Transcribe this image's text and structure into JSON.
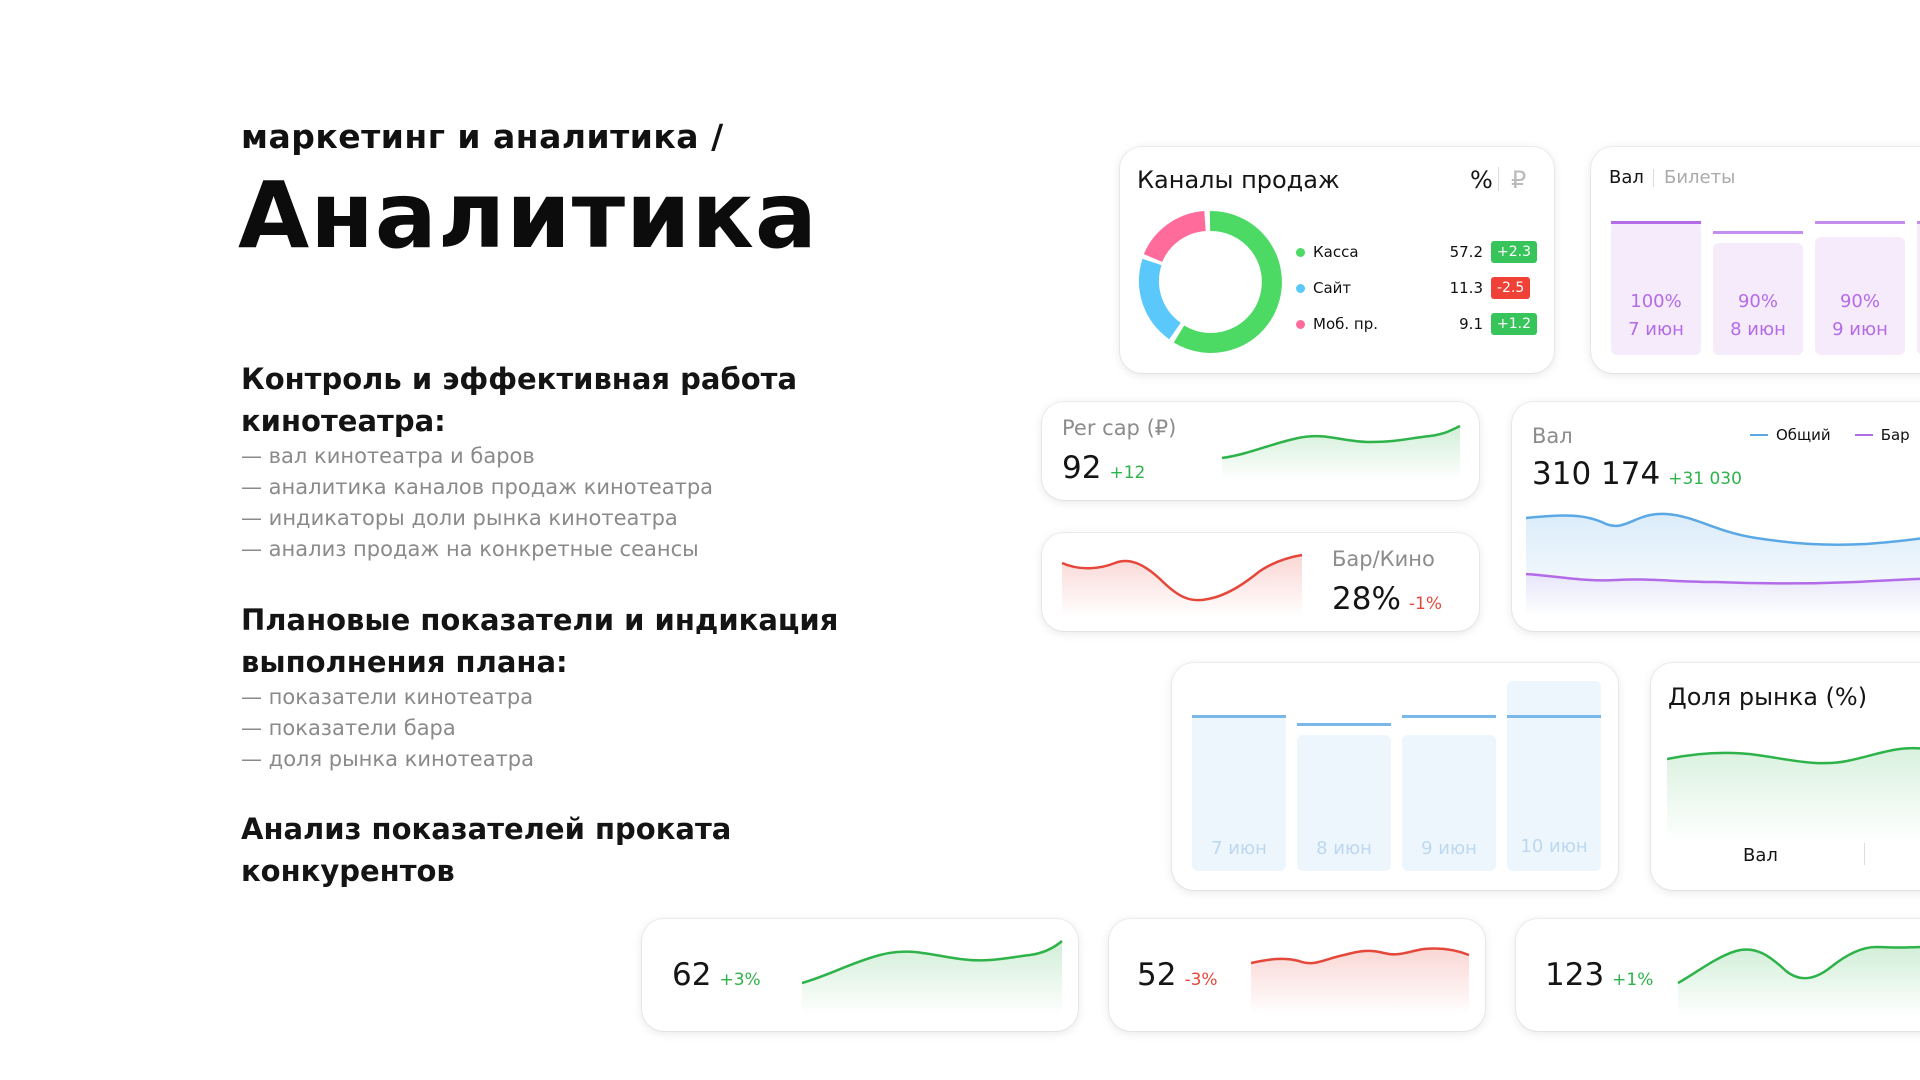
{
  "header": {
    "kicker": "маркетинг и аналитика /",
    "title": "Аналитика"
  },
  "sections": [
    {
      "heading_line1": "Контроль и эффективная работа",
      "heading_line2": "кинотеатра:",
      "bullets": [
        "— вал кинотеатра и баров",
        "— аналитика каналов продаж кинотеатра",
        "— индикаторы доли рынка кинотеатра",
        "— анализ продаж на конкретные сеансы"
      ]
    },
    {
      "heading_line1": "Плановые показатели и индикация",
      "heading_line2": "выполнения плана:",
      "bullets": [
        "— показатели кинотеатра",
        "— показатели бара",
        "— доля рынка кинотеатра"
      ]
    },
    {
      "heading_line1": "Анализ показателей проката конкурентов"
    }
  ],
  "sales_channels": {
    "title": "Каналы продаж",
    "toggle_percent": "%",
    "toggle_rub": "₽",
    "rows": [
      {
        "label": "Касса",
        "value": "57.2",
        "delta": "+2.3",
        "color": "#4cd964"
      },
      {
        "label": "Сайт",
        "value": "11.3",
        "delta": "-2.5",
        "color": "#5ac8fa"
      },
      {
        "label": "Моб. пр.",
        "value": "9.1",
        "delta": "+1.2",
        "color": "#ff6b9a"
      }
    ]
  },
  "val_tickets": {
    "tab_active": "Вал",
    "tab_inactive": "Билеты",
    "bars": [
      {
        "pct": "100%",
        "date": "7 июн",
        "fill": 1.0
      },
      {
        "pct": "90%",
        "date": "8 июн",
        "fill": 0.9
      },
      {
        "pct": "90%",
        "date": "9 июн",
        "fill": 0.9
      }
    ]
  },
  "per_cap": {
    "label": "Per cap (₽)",
    "value": "92",
    "delta": "+12"
  },
  "bar_kino": {
    "label": "Бар/Кино",
    "value": "28%",
    "delta": "-1%"
  },
  "val_chart": {
    "title": "Вал",
    "value": "310 174",
    "delta": "+31 030",
    "legend": [
      {
        "label": "Общий",
        "color": "#5aa8e6"
      },
      {
        "label": "Бар",
        "color": "#b36be8"
      }
    ]
  },
  "plan_bars": {
    "bars": [
      {
        "date": "7 июн",
        "fill": 0.88
      },
      {
        "date": "8 июн",
        "fill": 0.82
      },
      {
        "date": "9 июн",
        "fill": 0.88
      },
      {
        "date": "10 июн",
        "fill": 1.0
      }
    ]
  },
  "market_share": {
    "title": "Доля рынка (%)",
    "footer": "Вал"
  },
  "mini_cards": [
    {
      "value": "62",
      "delta": "+3%",
      "trend": "up"
    },
    {
      "value": "52",
      "delta": "-3%",
      "trend": "down"
    },
    {
      "value": "123",
      "delta": "+1%",
      "trend": "up"
    }
  ],
  "colors": {
    "green": "#2eb34a",
    "red": "#e5473b",
    "blue": "#5aa8e6",
    "purple": "#b36be8"
  }
}
